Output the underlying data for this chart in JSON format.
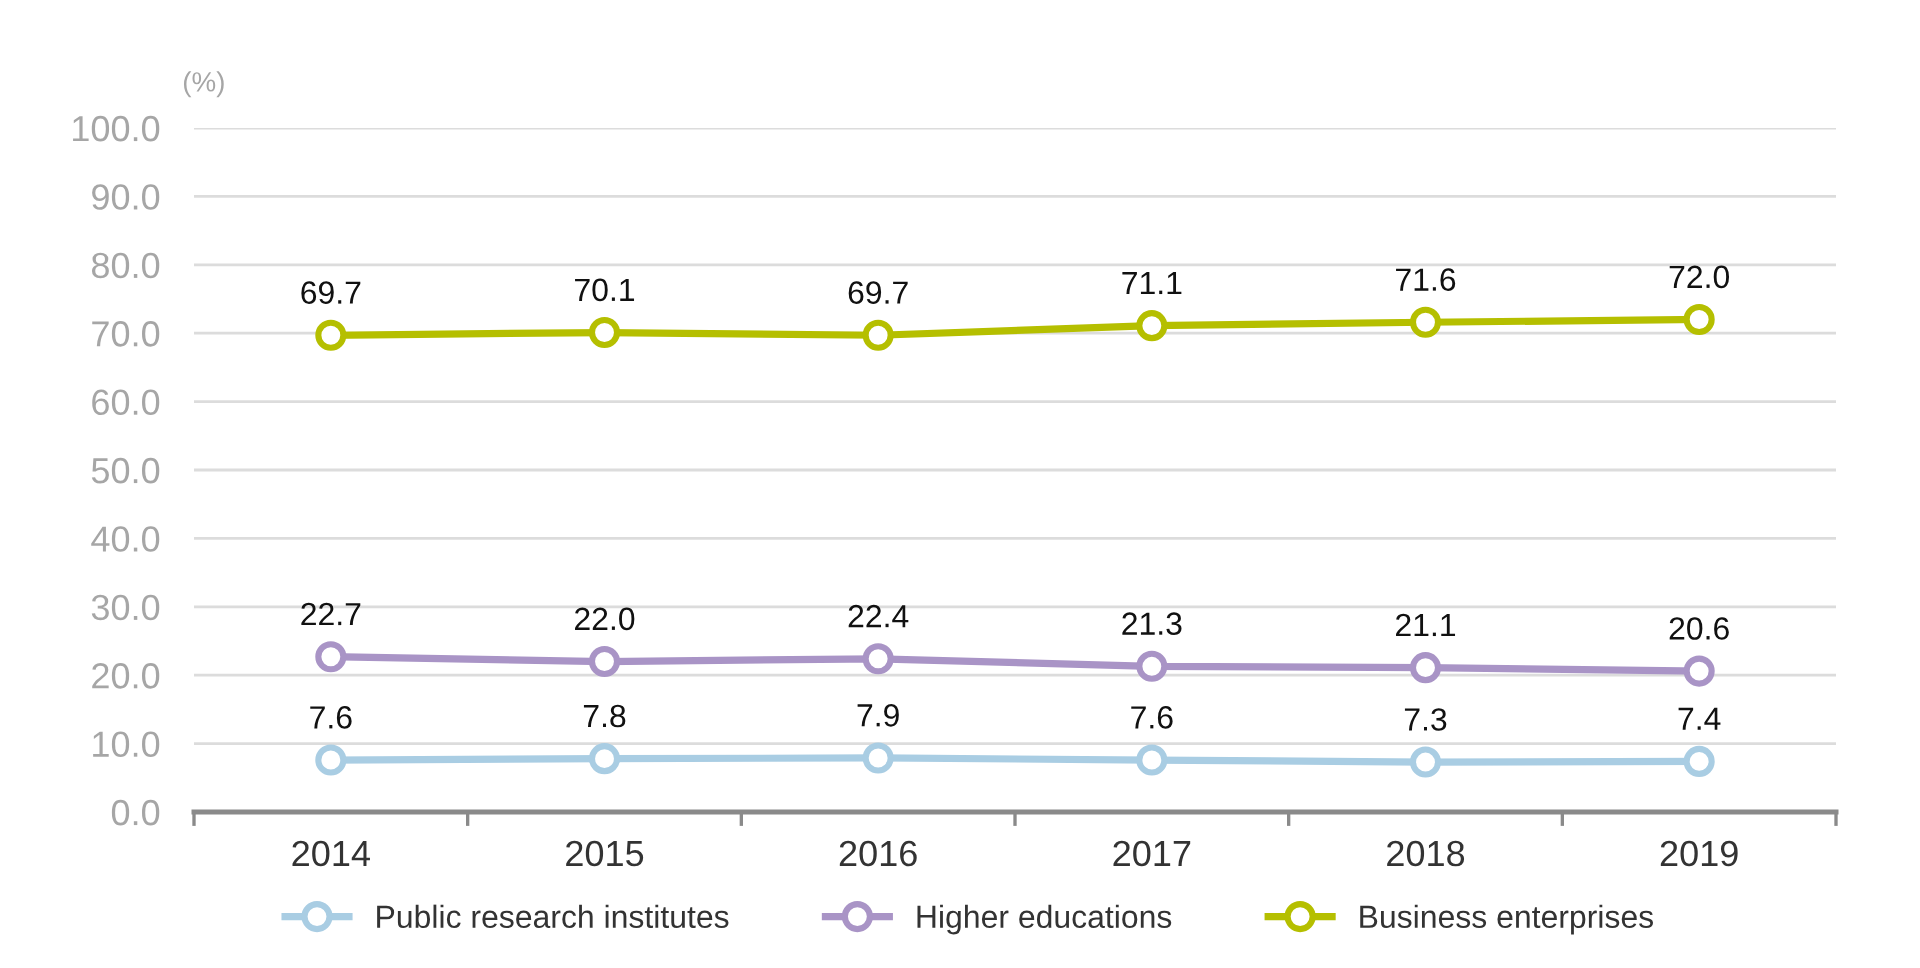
{
  "chart_data": {
    "type": "line",
    "ylabel": "(%)",
    "categories": [
      "2014",
      "2015",
      "2016",
      "2017",
      "2018",
      "2019"
    ],
    "series": [
      {
        "name": "Public research institutes",
        "color": "#a9cde3",
        "values": [
          7.6,
          7.8,
          7.9,
          7.6,
          7.3,
          7.4
        ],
        "value_labels": [
          "7.6",
          "7.8",
          "7.9",
          "7.6",
          "7.3",
          "7.4"
        ]
      },
      {
        "name": "Higher educations",
        "color": "#a994c6",
        "values": [
          22.7,
          22.0,
          22.4,
          21.3,
          21.1,
          20.6
        ],
        "value_labels": [
          "22.7",
          "22.0",
          "22.4",
          "21.3",
          "21.1",
          "20.6"
        ]
      },
      {
        "name": "Business enterprises",
        "color": "#b5bf00",
        "values": [
          69.7,
          70.1,
          69.7,
          71.1,
          71.6,
          72.0
        ],
        "value_labels": [
          "69.7",
          "70.1",
          "69.7",
          "71.1",
          "71.6",
          "72.0"
        ]
      }
    ],
    "ylim": [
      0,
      100
    ],
    "yticks": [
      {
        "value": 0,
        "label": "0.0"
      },
      {
        "value": 10,
        "label": "10.0"
      },
      {
        "value": 20,
        "label": "20.0"
      },
      {
        "value": 30,
        "label": "30.0"
      },
      {
        "value": 40,
        "label": "40.0"
      },
      {
        "value": 50,
        "label": "50.0"
      },
      {
        "value": 60,
        "label": "60.0"
      },
      {
        "value": 70,
        "label": "70.0"
      },
      {
        "value": 80,
        "label": "80.0"
      },
      {
        "value": 90,
        "label": "90.0"
      },
      {
        "value": 100,
        "label": "100.0"
      }
    ],
    "grid": "y",
    "legend": "bottom",
    "marker": "circle",
    "line_style": "solid"
  }
}
